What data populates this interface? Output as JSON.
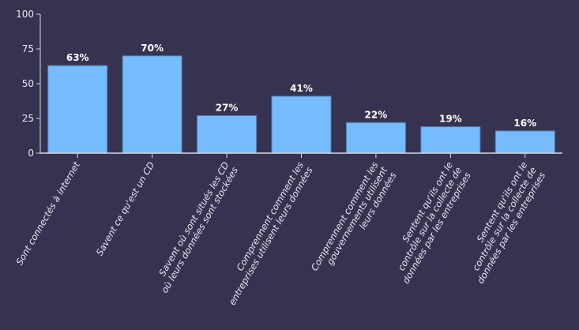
{
  "chart_data": {
    "type": "bar",
    "categories": [
      [
        "Sont connectés à internet"
      ],
      [
        "Savent ce qu'est un CD"
      ],
      [
        "Savent où sont situés les CD",
        "où leurs données sont stockées"
      ],
      [
        "Comprennent comment les",
        "entreprises utilisent leurs données"
      ],
      [
        "Comprennent comment les",
        "gouvernements  utilisent",
        "leurs données"
      ],
      [
        "Sentent qu'ils ont le",
        "contrôle sur la collecte de",
        "données par les entreprises"
      ],
      [
        "Sentent qu'ils ont le",
        "contrôle sur la collecte de",
        "données par les entreprises"
      ]
    ],
    "values": [
      63,
      70,
      27,
      41,
      22,
      19,
      16
    ],
    "value_labels": [
      "63%",
      "70%",
      "27%",
      "41%",
      "22%",
      "19%",
      "16%"
    ],
    "ylim": [
      0,
      100
    ],
    "yticks": [
      0,
      25,
      50,
      75,
      100
    ],
    "grid": false,
    "colors": {
      "background": "#363351",
      "bar": "#76bbfb",
      "bar_border": "#4f7fb8",
      "axis": "#d8d8e0"
    }
  }
}
